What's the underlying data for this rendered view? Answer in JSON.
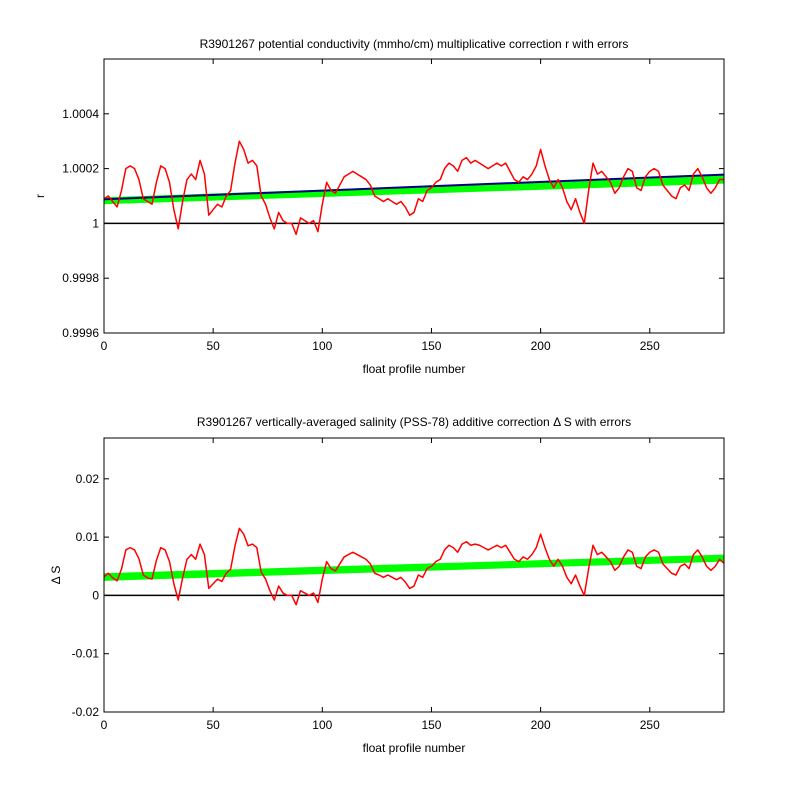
{
  "colors": {
    "background": "#ffffff",
    "axes": "#000000",
    "fit": "#000080",
    "error_band": "#00ff00",
    "data": "#ff0000",
    "reference": "#000000"
  },
  "chart_data": [
    {
      "type": "line",
      "title": "R3901267 potential conductivity (mmho/cm) multiplicative correction r with errors",
      "xlabel": "float profile number",
      "ylabel": "r",
      "xlim": [
        0,
        284
      ],
      "ylim": [
        0.9996,
        1.0006
      ],
      "xticks": [
        0,
        50,
        100,
        150,
        200,
        250
      ],
      "xtick_labels": [
        "0",
        "50",
        "100",
        "150",
        "200",
        "250"
      ],
      "yticks": [
        0.9996,
        0.9998,
        1.0,
        1.0002,
        1.0004
      ],
      "ytick_labels": [
        "0.9996",
        "0.9998",
        "1",
        "1.0002",
        "1.0004"
      ],
      "grid": false,
      "reference_line": 1.0,
      "series": [
        {
          "role": "error_band",
          "color": "#00ff00",
          "x": [
            0,
            284
          ],
          "lower": [
            1.00007,
            1.000145
          ],
          "upper": [
            1.000095,
            1.000175
          ]
        },
        {
          "role": "fit",
          "color": "#000080",
          "x": [
            0,
            284
          ],
          "y": [
            1.000088,
            1.000178
          ]
        },
        {
          "role": "data",
          "color": "#ff0000",
          "x": [
            0,
            2,
            4,
            6,
            8,
            10,
            12,
            14,
            16,
            18,
            20,
            22,
            24,
            26,
            28,
            30,
            32,
            34,
            36,
            38,
            40,
            42,
            44,
            46,
            48,
            50,
            52,
            54,
            56,
            58,
            60,
            62,
            64,
            66,
            68,
            70,
            72,
            74,
            76,
            78,
            80,
            82,
            84,
            86,
            88,
            90,
            92,
            94,
            96,
            98,
            100,
            102,
            104,
            106,
            108,
            110,
            112,
            114,
            116,
            118,
            120,
            122,
            124,
            126,
            128,
            130,
            132,
            134,
            136,
            138,
            140,
            142,
            144,
            146,
            148,
            150,
            152,
            154,
            156,
            158,
            160,
            162,
            164,
            166,
            168,
            170,
            172,
            174,
            176,
            178,
            180,
            182,
            184,
            186,
            188,
            190,
            192,
            194,
            196,
            198,
            200,
            202,
            204,
            206,
            208,
            210,
            212,
            214,
            216,
            218,
            220,
            222,
            224,
            226,
            228,
            230,
            232,
            234,
            236,
            238,
            240,
            242,
            244,
            246,
            248,
            250,
            252,
            254,
            256,
            258,
            260,
            262,
            264,
            266,
            268,
            270,
            272,
            274,
            276,
            278,
            280,
            282,
            284
          ],
          "y": [
            1.00009,
            1.0001,
            1.00008,
            1.00006,
            1.00012,
            1.0002,
            1.00021,
            1.0002,
            1.00016,
            1.00009,
            1.00008,
            1.00007,
            1.00015,
            1.00021,
            1.0002,
            1.00015,
            1.00005,
            0.99998,
            1.00008,
            1.00016,
            1.00018,
            1.00016,
            1.00023,
            1.00018,
            1.00003,
            1.00005,
            1.00007,
            1.00006,
            1.0001,
            1.00012,
            1.00022,
            1.0003,
            1.00027,
            1.00022,
            1.00023,
            1.00021,
            1.0001,
            1.00007,
            1.00002,
            0.99998,
            1.00004,
            1.00001,
            1.0,
            1.0,
            0.99996,
            1.00002,
            1.00001,
            1.0,
            1.00001,
            0.99997,
            1.00007,
            1.00015,
            1.00012,
            1.00011,
            1.00014,
            1.00017,
            1.00018,
            1.00019,
            1.00018,
            1.00017,
            1.00016,
            1.00014,
            1.0001,
            1.00009,
            1.00008,
            1.00009,
            1.00008,
            1.00007,
            1.00008,
            1.00006,
            1.00003,
            1.00004,
            1.00009,
            1.00008,
            1.00012,
            1.00013,
            1.00015,
            1.00016,
            1.0002,
            1.00022,
            1.00021,
            1.00019,
            1.00023,
            1.00024,
            1.00022,
            1.00023,
            1.00022,
            1.00021,
            1.0002,
            1.00021,
            1.00022,
            1.00021,
            1.00022,
            1.00019,
            1.00016,
            1.00015,
            1.00017,
            1.00016,
            1.00018,
            1.00021,
            1.00027,
            1.00021,
            1.00016,
            1.00013,
            1.00016,
            1.00013,
            1.00008,
            1.00005,
            1.00009,
            1.00004,
            1.0,
            1.00012,
            1.00022,
            1.00018,
            1.00019,
            1.00017,
            1.00015,
            1.00011,
            1.00013,
            1.00017,
            1.0002,
            1.00019,
            1.00013,
            1.00012,
            1.00017,
            1.00019,
            1.0002,
            1.00019,
            1.00014,
            1.00012,
            1.0001,
            1.00009,
            1.00013,
            1.00014,
            1.00012,
            1.00018,
            1.0002,
            1.00017,
            1.00013,
            1.00011,
            1.00013,
            1.00016,
            1.00016
          ]
        }
      ]
    },
    {
      "type": "line",
      "title": "R3901267 vertically-averaged salinity (PSS-78) additive correction Δ S with errors",
      "xlabel": "float profile number",
      "ylabel": "Δ S",
      "xlim": [
        0,
        284
      ],
      "ylim": [
        -0.02,
        0.027
      ],
      "xticks": [
        0,
        50,
        100,
        150,
        200,
        250
      ],
      "xtick_labels": [
        "0",
        "50",
        "100",
        "150",
        "200",
        "250"
      ],
      "yticks": [
        -0.02,
        -0.01,
        0,
        0.01,
        0.02
      ],
      "ytick_labels": [
        "-0.02",
        "-0.01",
        "0",
        "0.01",
        "0.02"
      ],
      "grid": false,
      "reference_line": 0,
      "series": [
        {
          "role": "error_band",
          "color": "#00ff00",
          "x": [
            0,
            284
          ],
          "lower": [
            0.0025,
            0.0058
          ],
          "upper": [
            0.0038,
            0.007
          ]
        },
        {
          "role": "data",
          "color": "#ff0000",
          "x": [
            0,
            2,
            4,
            6,
            8,
            10,
            12,
            14,
            16,
            18,
            20,
            22,
            24,
            26,
            28,
            30,
            32,
            34,
            36,
            38,
            40,
            42,
            44,
            46,
            48,
            50,
            52,
            54,
            56,
            58,
            60,
            62,
            64,
            66,
            68,
            70,
            72,
            74,
            76,
            78,
            80,
            82,
            84,
            86,
            88,
            90,
            92,
            94,
            96,
            98,
            100,
            102,
            104,
            106,
            108,
            110,
            112,
            114,
            116,
            118,
            120,
            122,
            124,
            126,
            128,
            130,
            132,
            134,
            136,
            138,
            140,
            142,
            144,
            146,
            148,
            150,
            152,
            154,
            156,
            158,
            160,
            162,
            164,
            166,
            168,
            170,
            172,
            174,
            176,
            178,
            180,
            182,
            184,
            186,
            188,
            190,
            192,
            194,
            196,
            198,
            200,
            202,
            204,
            206,
            208,
            210,
            212,
            214,
            216,
            218,
            220,
            222,
            224,
            226,
            228,
            230,
            232,
            234,
            236,
            238,
            240,
            242,
            244,
            246,
            248,
            250,
            252,
            254,
            256,
            258,
            260,
            262,
            264,
            266,
            268,
            270,
            272,
            274,
            276,
            278,
            280,
            282,
            284
          ],
          "y": [
            0.0032,
            0.0038,
            0.003,
            0.0025,
            0.0045,
            0.0078,
            0.0082,
            0.0078,
            0.0063,
            0.0035,
            0.003,
            0.0028,
            0.006,
            0.0082,
            0.0078,
            0.0058,
            0.002,
            -0.0008,
            0.003,
            0.0062,
            0.007,
            0.0062,
            0.0088,
            0.007,
            0.0012,
            0.002,
            0.0028,
            0.0024,
            0.0038,
            0.0045,
            0.0085,
            0.0115,
            0.0105,
            0.0085,
            0.0088,
            0.0082,
            0.004,
            0.0028,
            0.0008,
            -0.0008,
            0.0016,
            0.0004,
            0.0,
            0.0,
            -0.0016,
            0.0008,
            0.0004,
            0.0,
            0.0004,
            -0.0012,
            0.0028,
            0.0058,
            0.0046,
            0.0042,
            0.0054,
            0.0066,
            0.007,
            0.0074,
            0.007,
            0.0066,
            0.0062,
            0.0054,
            0.0038,
            0.0035,
            0.0031,
            0.0035,
            0.0031,
            0.0027,
            0.0031,
            0.0023,
            0.0012,
            0.0016,
            0.0035,
            0.0031,
            0.0046,
            0.005,
            0.0058,
            0.0062,
            0.0078,
            0.0086,
            0.0082,
            0.0074,
            0.0088,
            0.0092,
            0.0086,
            0.0088,
            0.0086,
            0.0082,
            0.0078,
            0.0082,
            0.0086,
            0.0082,
            0.0086,
            0.0074,
            0.0062,
            0.0058,
            0.0066,
            0.0062,
            0.007,
            0.0082,
            0.0105,
            0.0082,
            0.0062,
            0.005,
            0.0062,
            0.005,
            0.0031,
            0.002,
            0.0035,
            0.0016,
            0.0,
            0.0046,
            0.0086,
            0.007,
            0.0074,
            0.0066,
            0.0058,
            0.0043,
            0.005,
            0.0066,
            0.0078,
            0.0074,
            0.005,
            0.0046,
            0.0066,
            0.0074,
            0.0078,
            0.0074,
            0.0054,
            0.0046,
            0.0038,
            0.0035,
            0.005,
            0.0054,
            0.0046,
            0.007,
            0.0078,
            0.0066,
            0.005,
            0.0043,
            0.005,
            0.0062,
            0.0055
          ]
        }
      ]
    }
  ]
}
